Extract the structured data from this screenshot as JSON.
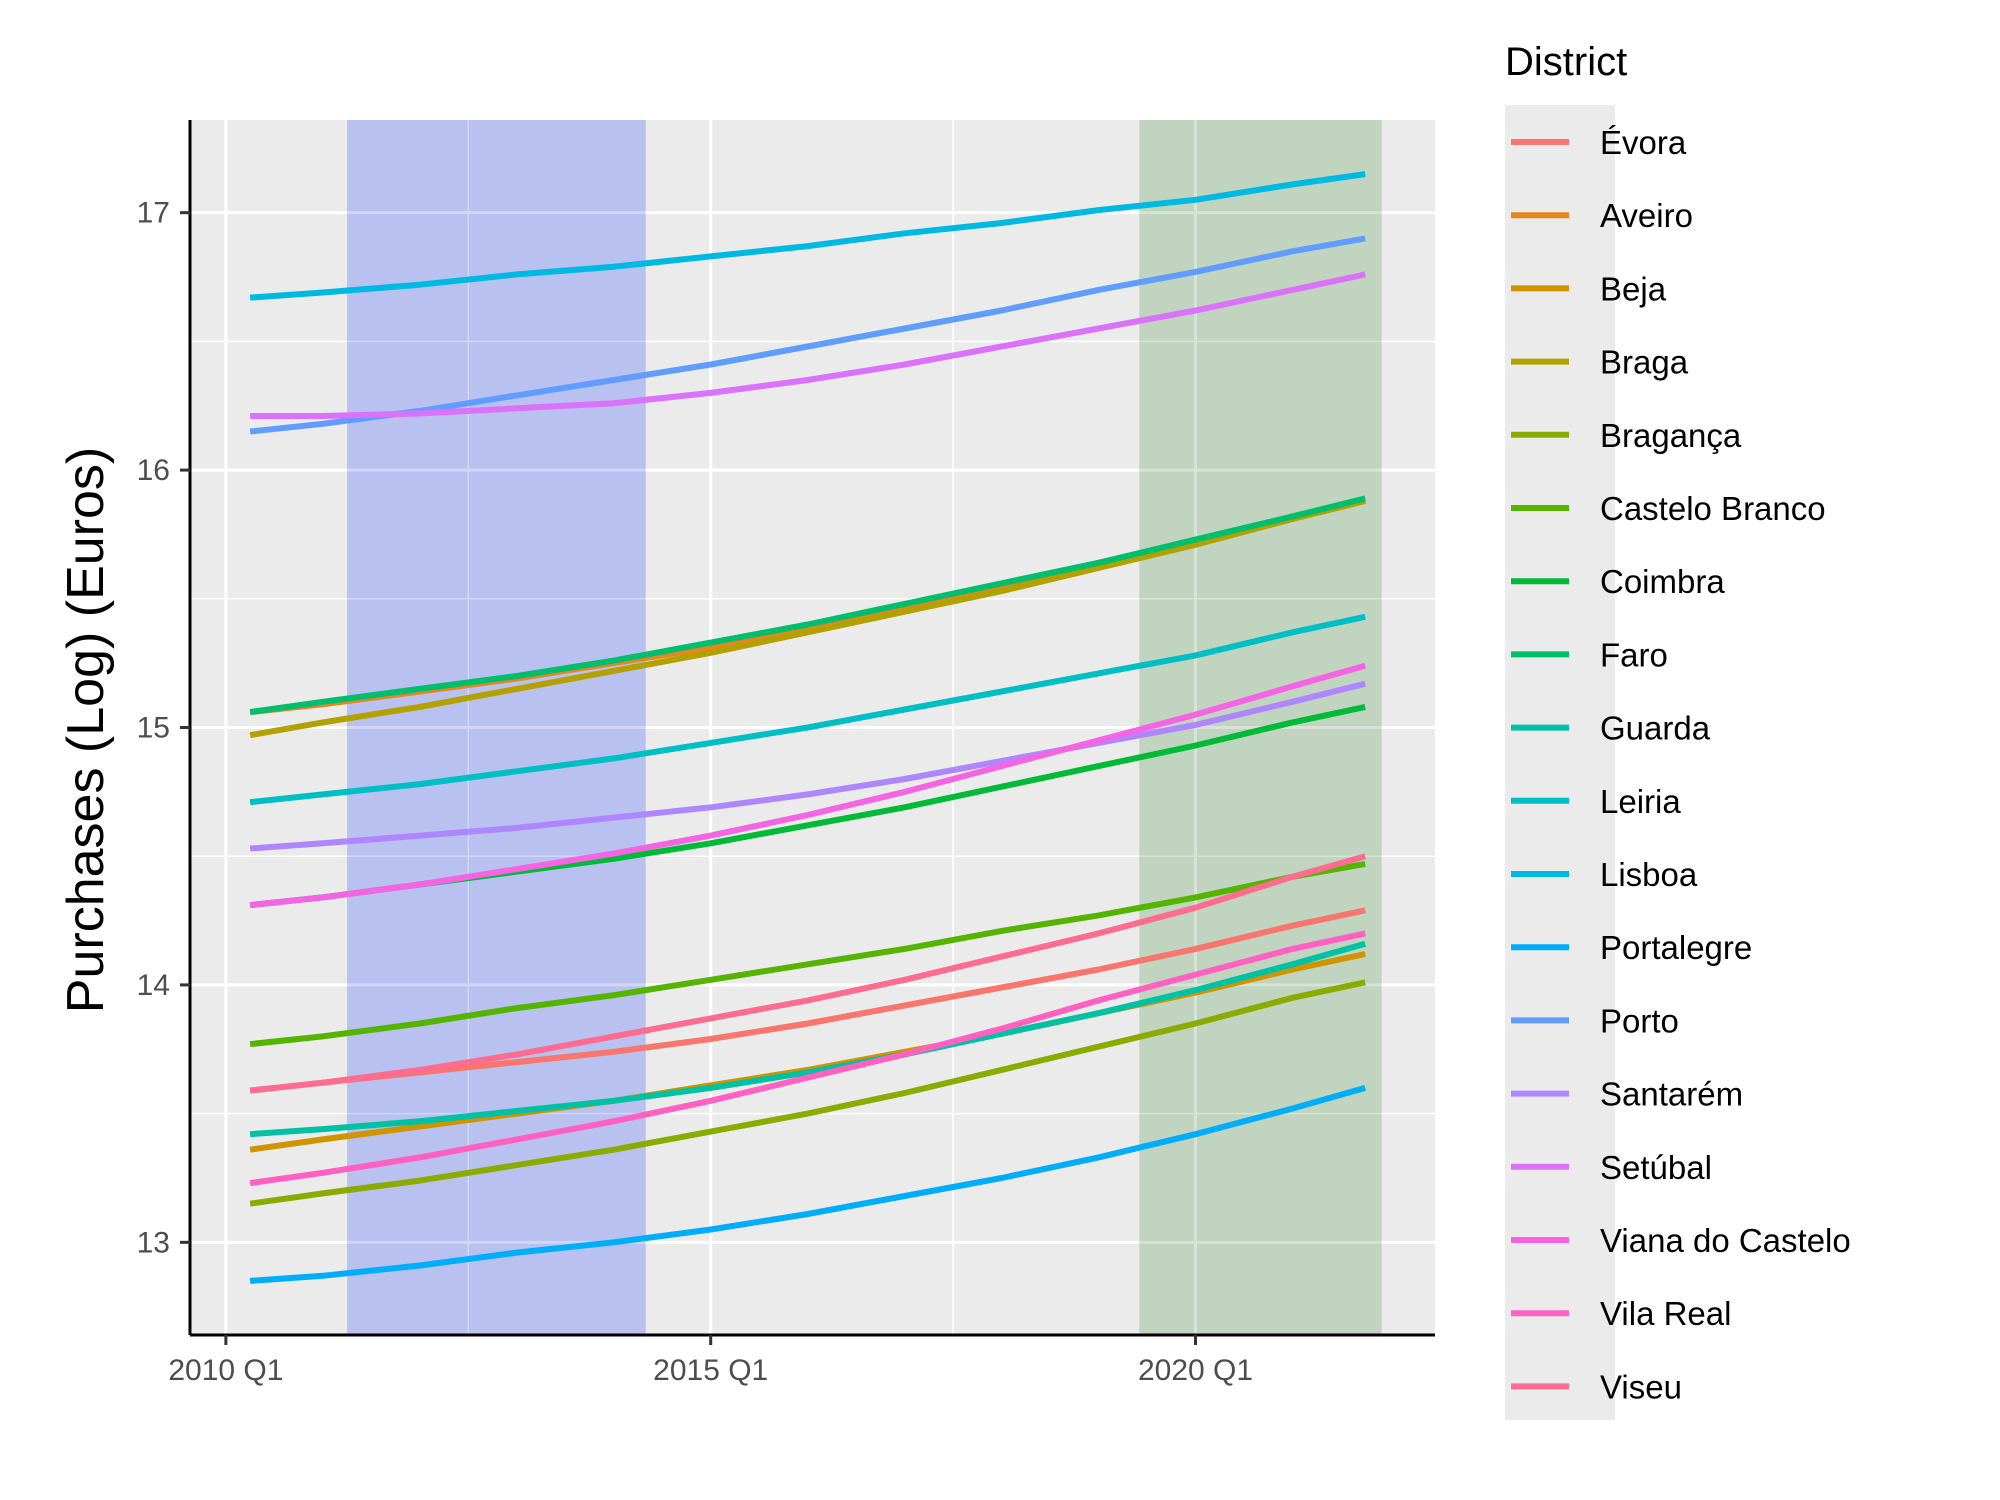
{
  "chart_data": {
    "type": "line",
    "ylabel": "Purchases (Log) (Euros)",
    "xlabel": "",
    "x_ticks": [
      {
        "label": "2010 Q1",
        "t": 2010.0
      },
      {
        "label": "2015 Q1",
        "t": 2015.0
      },
      {
        "label": "2020 Q1",
        "t": 2020.0
      }
    ],
    "y_ticks": [
      13,
      14,
      15,
      16,
      17
    ],
    "xlim": [
      2009.63,
      2022.47
    ],
    "ylim": [
      12.64,
      17.36
    ],
    "grid": true,
    "legend_title": "District",
    "legend_position": "right",
    "shaded_periods": [
      {
        "start": 2011.25,
        "end": 2014.33,
        "color": "#b8c1ef"
      },
      {
        "start": 2019.42,
        "end": 2021.92,
        "color": "#c0d4bf"
      }
    ],
    "x": [
      2010.25,
      2011.0,
      2012.0,
      2013.0,
      2014.0,
      2015.0,
      2016.0,
      2017.0,
      2018.0,
      2019.0,
      2020.0,
      2021.0,
      2021.75
    ],
    "series": [
      {
        "name": "Évora",
        "color": "#F8766D",
        "values": [
          13.59,
          13.62,
          13.66,
          13.7,
          13.74,
          13.79,
          13.85,
          13.92,
          13.99,
          14.06,
          14.14,
          14.23,
          14.29
        ]
      },
      {
        "name": "Aveiro",
        "color": "#E7851E",
        "values": [
          15.06,
          15.09,
          15.14,
          15.19,
          15.25,
          15.31,
          15.39,
          15.47,
          15.55,
          15.64,
          15.72,
          15.82,
          15.88
        ]
      },
      {
        "name": "Beja",
        "color": "#D09400",
        "values": [
          13.36,
          13.4,
          13.45,
          13.5,
          13.55,
          13.61,
          13.67,
          13.74,
          13.81,
          13.89,
          13.97,
          14.06,
          14.12
        ]
      },
      {
        "name": "Braga",
        "color": "#B2A100",
        "values": [
          14.97,
          15.02,
          15.08,
          15.15,
          15.22,
          15.29,
          15.37,
          15.45,
          15.53,
          15.62,
          15.71,
          15.81,
          15.88
        ]
      },
      {
        "name": "Bragança",
        "color": "#8BAB00",
        "values": [
          13.15,
          13.19,
          13.24,
          13.3,
          13.36,
          13.43,
          13.5,
          13.58,
          13.67,
          13.76,
          13.85,
          13.95,
          14.01
        ]
      },
      {
        "name": "Castelo Branco",
        "color": "#55B400",
        "values": [
          13.77,
          13.8,
          13.85,
          13.91,
          13.96,
          14.02,
          14.08,
          14.14,
          14.21,
          14.27,
          14.34,
          14.42,
          14.47
        ]
      },
      {
        "name": "Coimbra",
        "color": "#00BA38",
        "values": [
          14.31,
          14.34,
          14.39,
          14.44,
          14.49,
          14.55,
          14.62,
          14.69,
          14.77,
          14.85,
          14.93,
          15.02,
          15.08
        ]
      },
      {
        "name": "Faro",
        "color": "#00BE6C",
        "values": [
          15.06,
          15.1,
          15.15,
          15.2,
          15.26,
          15.33,
          15.4,
          15.48,
          15.56,
          15.64,
          15.73,
          15.82,
          15.89
        ]
      },
      {
        "name": "Guarda",
        "color": "#00C1A3",
        "values": [
          13.42,
          13.44,
          13.47,
          13.51,
          13.55,
          13.6,
          13.66,
          13.73,
          13.81,
          13.89,
          13.98,
          14.08,
          14.16
        ]
      },
      {
        "name": "Leiria",
        "color": "#00BFC4",
        "values": [
          14.71,
          14.74,
          14.78,
          14.83,
          14.88,
          14.94,
          15.0,
          15.07,
          15.14,
          15.21,
          15.28,
          15.37,
          15.43
        ]
      },
      {
        "name": "Lisboa",
        "color": "#00B9E3",
        "values": [
          16.67,
          16.69,
          16.72,
          16.76,
          16.79,
          16.83,
          16.87,
          16.92,
          16.96,
          17.01,
          17.05,
          17.11,
          17.15
        ]
      },
      {
        "name": "Portalegre",
        "color": "#00ADFA",
        "values": [
          12.85,
          12.87,
          12.91,
          12.96,
          13.0,
          13.05,
          13.11,
          13.18,
          13.25,
          13.33,
          13.42,
          13.52,
          13.6
        ]
      },
      {
        "name": "Porto",
        "color": "#619CFF",
        "values": [
          16.15,
          16.18,
          16.23,
          16.29,
          16.35,
          16.41,
          16.48,
          16.55,
          16.62,
          16.7,
          16.77,
          16.85,
          16.9
        ]
      },
      {
        "name": "Santarém",
        "color": "#AE87FF",
        "values": [
          14.53,
          14.55,
          14.58,
          14.61,
          14.65,
          14.69,
          14.74,
          14.8,
          14.87,
          14.94,
          15.01,
          15.1,
          15.17
        ]
      },
      {
        "name": "Setúbal",
        "color": "#DB72FB",
        "values": [
          16.21,
          16.21,
          16.22,
          16.24,
          16.26,
          16.3,
          16.35,
          16.41,
          16.48,
          16.55,
          16.62,
          16.7,
          16.76
        ]
      },
      {
        "name": "Viana do Castelo",
        "color": "#F564E3",
        "values": [
          14.31,
          14.34,
          14.39,
          14.45,
          14.51,
          14.58,
          14.66,
          14.75,
          14.85,
          14.95,
          15.05,
          15.16,
          15.24
        ]
      },
      {
        "name": "Vila Real",
        "color": "#FF61C3",
        "values": [
          13.23,
          13.27,
          13.33,
          13.4,
          13.47,
          13.55,
          13.64,
          13.73,
          13.83,
          13.94,
          14.04,
          14.14,
          14.2
        ]
      },
      {
        "name": "Viseu",
        "color": "#FF6C91",
        "values": [
          13.59,
          13.62,
          13.67,
          13.73,
          13.8,
          13.87,
          13.94,
          14.02,
          14.11,
          14.2,
          14.3,
          14.42,
          14.5
        ]
      }
    ]
  }
}
